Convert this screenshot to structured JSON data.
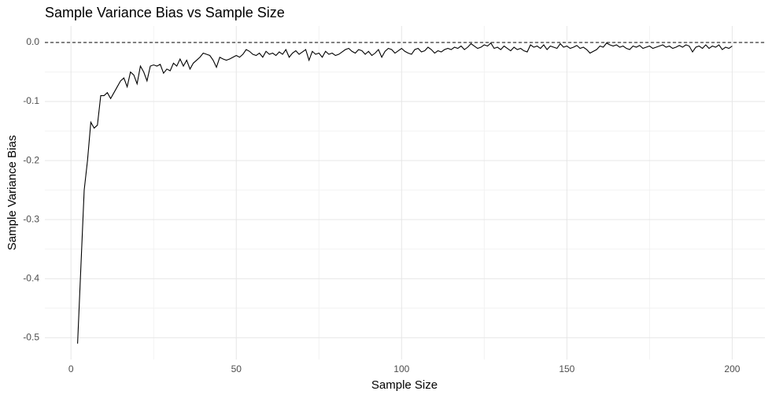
{
  "chart_data": {
    "type": "line",
    "title": "Sample Variance Bias vs Sample Size",
    "x_label": "Sample Size",
    "y_label": "Sample Variance Bias",
    "x": [
      2,
      3,
      4,
      5,
      6,
      7,
      8,
      9,
      10,
      11,
      12,
      13,
      14,
      15,
      16,
      17,
      18,
      19,
      20,
      21,
      22,
      23,
      24,
      25,
      26,
      27,
      28,
      29,
      30,
      31,
      32,
      33,
      34,
      35,
      36,
      37,
      38,
      39,
      40,
      41,
      42,
      43,
      44,
      45,
      46,
      47,
      48,
      49,
      50,
      51,
      52,
      53,
      54,
      55,
      56,
      57,
      58,
      59,
      60,
      61,
      62,
      63,
      64,
      65,
      66,
      67,
      68,
      69,
      70,
      71,
      72,
      73,
      74,
      75,
      76,
      77,
      78,
      79,
      80,
      81,
      82,
      83,
      84,
      85,
      86,
      87,
      88,
      89,
      90,
      91,
      92,
      93,
      94,
      95,
      96,
      97,
      98,
      99,
      100,
      101,
      102,
      103,
      104,
      105,
      106,
      107,
      108,
      109,
      110,
      111,
      112,
      113,
      114,
      115,
      116,
      117,
      118,
      119,
      120,
      121,
      122,
      123,
      124,
      125,
      126,
      127,
      128,
      129,
      130,
      131,
      132,
      133,
      134,
      135,
      136,
      137,
      138,
      139,
      140,
      141,
      142,
      143,
      144,
      145,
      146,
      147,
      148,
      149,
      150,
      151,
      152,
      153,
      154,
      155,
      156,
      157,
      158,
      159,
      160,
      161,
      162,
      163,
      164,
      165,
      166,
      167,
      168,
      169,
      170,
      171,
      172,
      173,
      174,
      175,
      176,
      177,
      178,
      179,
      180,
      181,
      182,
      183,
      184,
      185,
      186,
      187,
      188,
      189,
      190,
      191,
      192,
      193,
      194,
      195,
      196,
      197,
      198,
      199,
      200
    ],
    "series": [
      {
        "color": "#000000",
        "values": [
          -0.51,
          -0.38,
          -0.25,
          -0.2,
          -0.135,
          -0.145,
          -0.14,
          -0.09,
          -0.09,
          -0.085,
          -0.095,
          -0.085,
          -0.075,
          -0.065,
          -0.06,
          -0.075,
          -0.05,
          -0.055,
          -0.07,
          -0.04,
          -0.05,
          -0.065,
          -0.04,
          -0.038,
          -0.04,
          -0.037,
          -0.052,
          -0.045,
          -0.048,
          -0.035,
          -0.04,
          -0.028,
          -0.04,
          -0.03,
          -0.045,
          -0.035,
          -0.03,
          -0.025,
          -0.018,
          -0.02,
          -0.022,
          -0.03,
          -0.042,
          -0.025,
          -0.028,
          -0.03,
          -0.028,
          -0.025,
          -0.022,
          -0.025,
          -0.02,
          -0.012,
          -0.015,
          -0.02,
          -0.022,
          -0.018,
          -0.025,
          -0.015,
          -0.02,
          -0.018,
          -0.022,
          -0.016,
          -0.02,
          -0.012,
          -0.025,
          -0.018,
          -0.014,
          -0.02,
          -0.016,
          -0.012,
          -0.03,
          -0.015,
          -0.02,
          -0.018,
          -0.025,
          -0.015,
          -0.02,
          -0.018,
          -0.022,
          -0.02,
          -0.016,
          -0.012,
          -0.01,
          -0.015,
          -0.018,
          -0.012,
          -0.014,
          -0.02,
          -0.015,
          -0.022,
          -0.018,
          -0.012,
          -0.025,
          -0.015,
          -0.01,
          -0.012,
          -0.018,
          -0.014,
          -0.01,
          -0.015,
          -0.018,
          -0.02,
          -0.012,
          -0.01,
          -0.016,
          -0.014,
          -0.008,
          -0.012,
          -0.018,
          -0.014,
          -0.016,
          -0.012,
          -0.01,
          -0.012,
          -0.008,
          -0.01,
          -0.006,
          -0.012,
          -0.008,
          -0.002,
          -0.006,
          -0.01,
          -0.008,
          -0.004,
          -0.006,
          -0.001,
          -0.01,
          -0.008,
          -0.012,
          -0.006,
          -0.01,
          -0.014,
          -0.008,
          -0.012,
          -0.01,
          -0.014,
          -0.016,
          -0.004,
          -0.008,
          -0.006,
          -0.01,
          -0.004,
          -0.012,
          -0.006,
          -0.008,
          -0.01,
          -0.002,
          -0.008,
          -0.006,
          -0.01,
          -0.008,
          -0.005,
          -0.01,
          -0.008,
          -0.012,
          -0.018,
          -0.015,
          -0.012,
          -0.006,
          -0.008,
          -0.001,
          -0.004,
          -0.006,
          -0.004,
          -0.008,
          -0.006,
          -0.01,
          -0.012,
          -0.006,
          -0.008,
          -0.005,
          -0.01,
          -0.008,
          -0.006,
          -0.01,
          -0.008,
          -0.006,
          -0.004,
          -0.008,
          -0.006,
          -0.01,
          -0.008,
          -0.005,
          -0.008,
          -0.004,
          -0.006,
          -0.016,
          -0.008,
          -0.006,
          -0.01,
          -0.004,
          -0.01,
          -0.006,
          -0.008,
          -0.004,
          -0.012,
          -0.008,
          -0.01,
          -0.006
        ]
      }
    ],
    "reference_line": 0,
    "xlim": [
      -7.9,
      209.9
    ],
    "ylim": [
      -0.537,
      0.028
    ],
    "xticks": [
      0,
      50,
      100,
      150,
      200
    ],
    "x_minor_ticks": [
      25,
      75,
      125,
      175
    ],
    "yticks": [
      {
        "value": -0.5,
        "label": "-0.5"
      },
      {
        "value": -0.4,
        "label": "-0.4"
      },
      {
        "value": -0.3,
        "label": "-0.3"
      },
      {
        "value": -0.2,
        "label": "-0.2"
      },
      {
        "value": -0.1,
        "label": "-0.1"
      },
      {
        "value": 0,
        "label": "0.0"
      }
    ],
    "y_minor_ticks": [
      -0.45,
      -0.35,
      -0.25,
      -0.15,
      -0.05
    ],
    "grid": true
  }
}
